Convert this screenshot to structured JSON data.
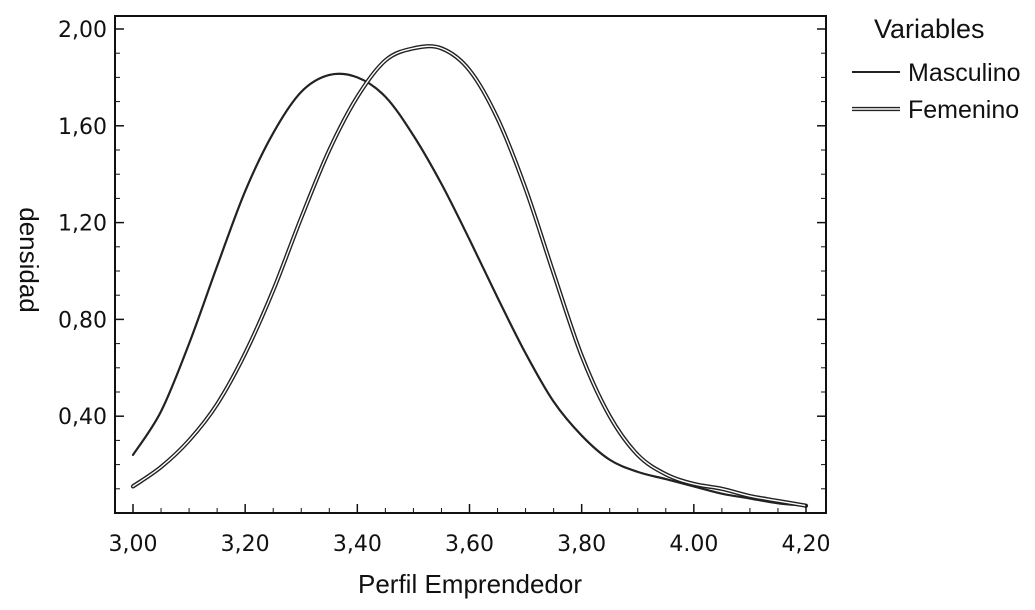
{
  "chart_data": {
    "type": "line",
    "xlabel": "Perfil Emprendedor",
    "ylabel": "densidad",
    "xlim": [
      3.0,
      4.2
    ],
    "ylim": [
      0.0,
      2.0
    ],
    "x_ticks": [
      3.0,
      3.2,
      3.4,
      3.6,
      3.8,
      4.0,
      4.2
    ],
    "x_tick_labels": [
      "3,00",
      "3,20",
      "3,40",
      "3,60",
      "3,80",
      "4.00",
      "4,20"
    ],
    "y_ticks": [
      0.4,
      0.8,
      1.2,
      1.6,
      2.0
    ],
    "y_tick_labels": [
      "0,40",
      "0,80",
      "1,20",
      "1,60",
      "2,00"
    ],
    "grid": false,
    "legend": {
      "title": "Variables",
      "placement": "right"
    },
    "series": [
      {
        "name": "Masculino",
        "line_style": "single",
        "x": [
          3.0,
          3.05,
          3.1,
          3.15,
          3.2,
          3.25,
          3.3,
          3.35,
          3.4,
          3.45,
          3.5,
          3.55,
          3.6,
          3.65,
          3.7,
          3.75,
          3.8,
          3.85,
          3.9,
          3.95,
          4.0,
          4.05,
          4.1,
          4.15,
          4.2
        ],
        "values": [
          0.24,
          0.42,
          0.7,
          1.02,
          1.33,
          1.57,
          1.74,
          1.81,
          1.8,
          1.72,
          1.56,
          1.36,
          1.13,
          0.89,
          0.66,
          0.46,
          0.32,
          0.22,
          0.17,
          0.14,
          0.11,
          0.08,
          0.06,
          0.04,
          0.03
        ]
      },
      {
        "name": "Femenino",
        "line_style": "double",
        "x": [
          3.0,
          3.05,
          3.1,
          3.15,
          3.2,
          3.25,
          3.3,
          3.35,
          3.4,
          3.45,
          3.5,
          3.55,
          3.6,
          3.65,
          3.7,
          3.75,
          3.8,
          3.85,
          3.9,
          3.95,
          4.0,
          4.05,
          4.1,
          4.15,
          4.2
        ],
        "values": [
          0.11,
          0.19,
          0.3,
          0.45,
          0.66,
          0.92,
          1.22,
          1.5,
          1.72,
          1.87,
          1.92,
          1.92,
          1.83,
          1.63,
          1.34,
          0.99,
          0.65,
          0.4,
          0.24,
          0.16,
          0.12,
          0.1,
          0.07,
          0.05,
          0.03
        ]
      }
    ]
  }
}
